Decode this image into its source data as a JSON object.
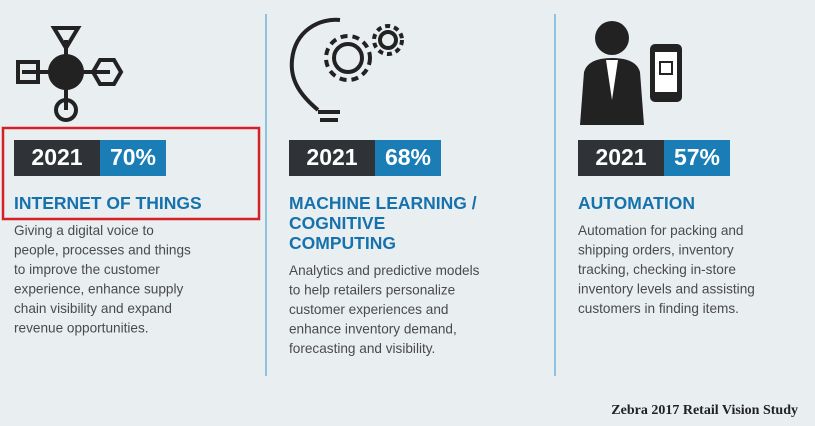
{
  "columns": [
    {
      "year": "2021",
      "percent": "70%",
      "title": [
        "INTERNET OF THINGS"
      ],
      "description": [
        "Giving a digital voice to",
        "people, processes and things",
        "to improve the customer",
        "experience, enhance supply",
        "chain visibility and expand",
        "revenue opportunities."
      ]
    },
    {
      "year": "2021",
      "percent": "68%",
      "title": [
        "MACHINE LEARNING /",
        "COGNITIVE",
        "COMPUTING"
      ],
      "description": [
        "Analytics and predictive models",
        "to help retailers personalize",
        "customer experiences and",
        "enhance inventory demand,",
        "forecasting and visibility."
      ]
    },
    {
      "year": "2021",
      "percent": "57%",
      "title": [
        "AUTOMATION"
      ],
      "description": [
        "Automation for packing and",
        "shipping orders, inventory",
        "tracking, checking in-store",
        "inventory levels and assisting",
        "customers in finding items."
      ]
    }
  ],
  "source": "Zebra 2017 Retail Vision Study"
}
